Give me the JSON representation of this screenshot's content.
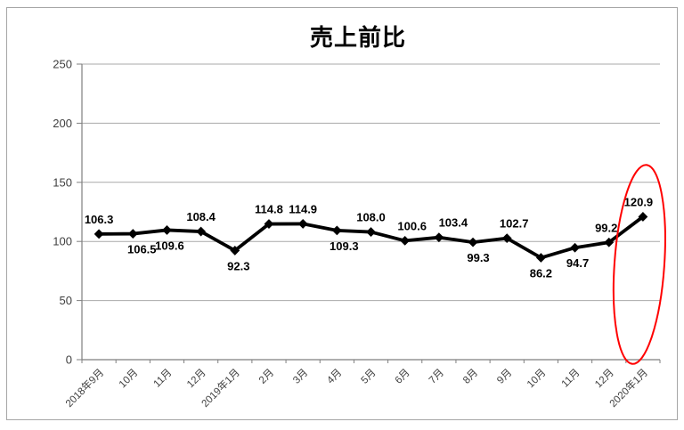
{
  "chart_data": {
    "type": "line",
    "title": "売上前比",
    "categories": [
      "2018年9月",
      "10月",
      "11月",
      "12月",
      "2019年1月",
      "2月",
      "3月",
      "4月",
      "5月",
      "6月",
      "7月",
      "8月",
      "9月",
      "10月",
      "11月",
      "12月",
      "2020年1月"
    ],
    "series": [
      {
        "name": "売上前比",
        "values": [
          106.3,
          106.5,
          109.6,
          108.4,
          92.3,
          114.8,
          114.9,
          109.3,
          108.0,
          100.6,
          103.4,
          99.3,
          102.7,
          86.2,
          94.7,
          99.2,
          120.9
        ]
      }
    ],
    "data_labels": [
      "106.3",
      "106.5",
      "109.6",
      "108.4",
      "92.3",
      "114.8",
      "114.9",
      "109.3",
      "108.0",
      "100.6",
      "103.4",
      "99.3",
      "102.7",
      "86.2",
      "94.7",
      "99.2",
      "120.9"
    ],
    "label_positions": [
      "above",
      "below",
      "below",
      "above",
      "below",
      "above",
      "above",
      "below",
      "above",
      "above",
      "above",
      "below",
      "above",
      "below",
      "below",
      "above",
      "above"
    ],
    "xlabel": "",
    "ylabel": "",
    "ylim": [
      0,
      250
    ],
    "yticks": [
      0,
      50,
      100,
      150,
      200,
      250
    ],
    "grid": true,
    "legend": "none",
    "marker": "diamond",
    "line_color": "#000000",
    "grid_color": "#a9a9a9",
    "axis_color": "#7f7f7f",
    "tick_label_color": "#3f3f3f",
    "annotation": {
      "shape": "ellipse",
      "color": "#ff0000",
      "highlight_category": "2020年1月",
      "highlight_value": "120.9"
    }
  }
}
